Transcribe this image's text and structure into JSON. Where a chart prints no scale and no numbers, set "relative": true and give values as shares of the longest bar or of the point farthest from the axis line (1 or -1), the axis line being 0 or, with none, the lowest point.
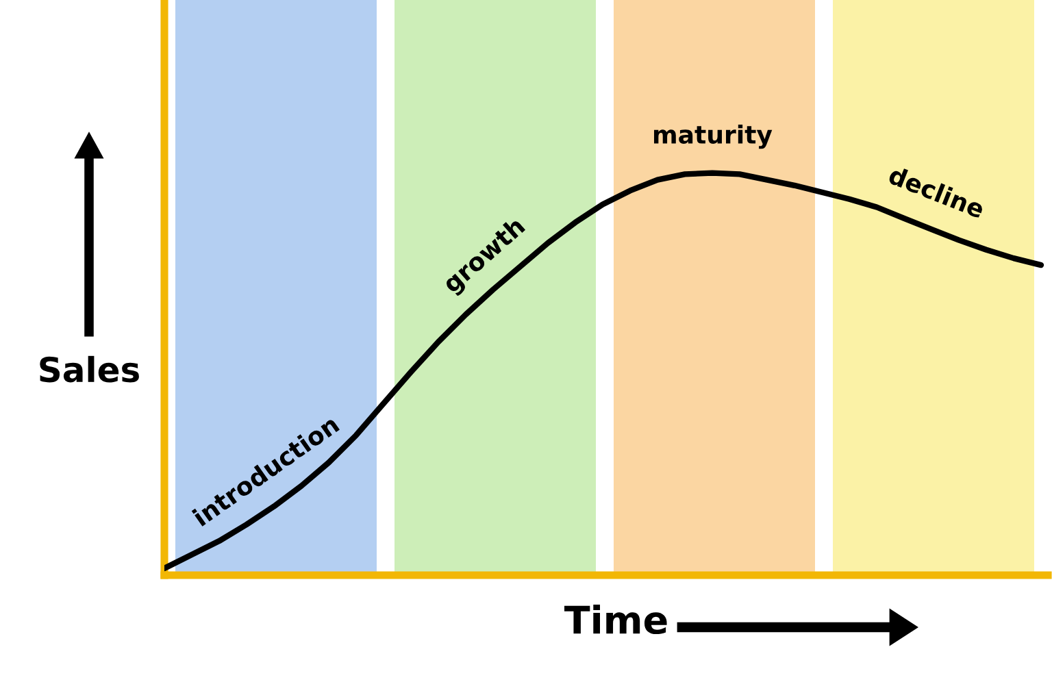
{
  "chart_data": {
    "type": "line",
    "relative": true,
    "xlabel": "Time",
    "ylabel": "Sales",
    "marker": "none",
    "line_style": "solid",
    "annotations": [
      "introduction",
      "growth",
      "maturity",
      "decline"
    ],
    "categories": [
      null,
      null,
      null,
      null,
      null,
      null,
      null,
      null,
      null,
      null,
      null,
      null,
      null,
      null,
      null,
      null,
      null,
      null,
      null,
      null,
      null,
      null,
      null,
      null,
      null,
      null,
      null,
      null,
      null,
      null,
      null,
      null,
      null
    ],
    "series": [
      {
        "color": "#000000",
        "values": [
          0.017,
          0.051,
          0.085,
          0.126,
          0.171,
          0.222,
          0.28,
          0.348,
          0.427,
          0.505,
          0.58,
          0.648,
          0.71,
          0.768,
          0.826,
          0.877,
          0.922,
          0.956,
          0.983,
          0.997,
          1,
          0.997,
          0.983,
          0.969,
          0.952,
          0.935,
          0.915,
          0.887,
          0.86,
          0.833,
          0.809,
          0.788,
          0.771
        ]
      }
    ]
  }
}
